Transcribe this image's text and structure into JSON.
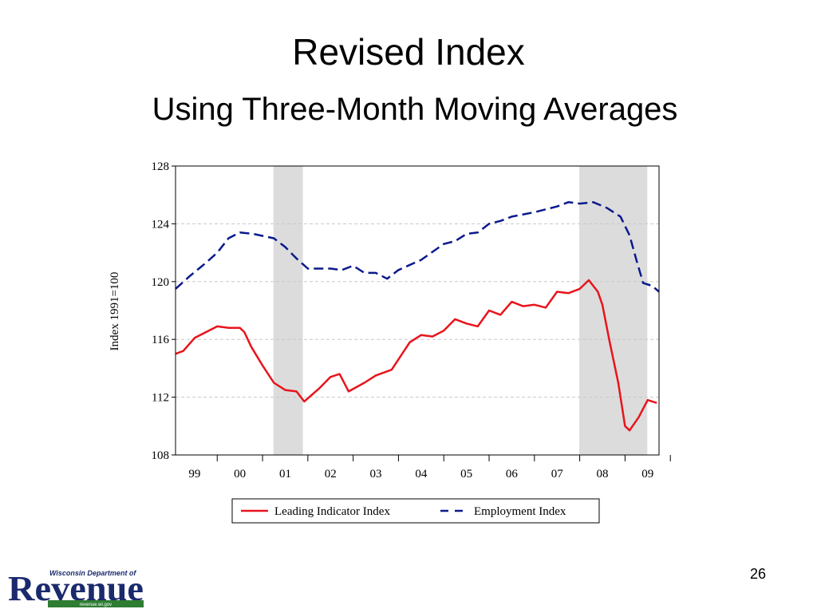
{
  "slide": {
    "page_number": "26",
    "logo": {
      "top": "Wisconsin Department of",
      "name": "Revenue",
      "url": "revenue.wi.gov"
    }
  },
  "chart_data": {
    "type": "line",
    "title": "Revised Index",
    "subtitle": "Using Three-Month Moving Averages",
    "y_label": "Index 1991=100",
    "xlim": [
      1999.08,
      2009.75
    ],
    "xticks": [
      {
        "value": 1999.5,
        "label": "99"
      },
      {
        "value": 2000.5,
        "label": "00"
      },
      {
        "value": 2001.5,
        "label": "01"
      },
      {
        "value": 2002.5,
        "label": "02"
      },
      {
        "value": 2003.5,
        "label": "03"
      },
      {
        "value": 2004.5,
        "label": "04"
      },
      {
        "value": 2005.5,
        "label": "05"
      },
      {
        "value": 2006.5,
        "label": "06"
      },
      {
        "value": 2007.5,
        "label": "07"
      },
      {
        "value": 2008.5,
        "label": "08"
      },
      {
        "value": 2009.5,
        "label": "09"
      }
    ],
    "ylim": [
      108,
      128
    ],
    "yticks": [
      108,
      112,
      116,
      120,
      124,
      128
    ],
    "grid": true,
    "shaded_regions": [
      [
        2001.24,
        2001.89
      ],
      [
        2007.99,
        2009.49
      ]
    ],
    "shade_color": "#dcdcdc",
    "legend": "bottom",
    "series": [
      {
        "name": "Leading Indicator Index",
        "color": "#e8141c",
        "line_style": "solid",
        "x": [
          1999.08,
          1999.25,
          1999.5,
          1999.75,
          2000.0,
          2000.25,
          2000.5,
          2000.6,
          2000.75,
          2001.0,
          2001.25,
          2001.5,
          2001.75,
          2001.92,
          2002.25,
          2002.5,
          2002.7,
          2002.9,
          2003.25,
          2003.5,
          2003.85,
          2004.25,
          2004.5,
          2004.75,
          2005.0,
          2005.25,
          2005.5,
          2005.75,
          2006.0,
          2006.25,
          2006.5,
          2006.75,
          2007.0,
          2007.25,
          2007.5,
          2007.75,
          2008.0,
          2008.2,
          2008.4,
          2008.5,
          2008.65,
          2008.85,
          2009.0,
          2009.1,
          2009.3,
          2009.5,
          2009.7
        ],
        "values": [
          115.0,
          115.2,
          116.1,
          116.5,
          116.9,
          116.8,
          116.8,
          116.5,
          115.5,
          114.2,
          113.0,
          112.5,
          112.4,
          111.7,
          112.6,
          113.4,
          113.6,
          112.4,
          113.0,
          113.5,
          113.9,
          115.8,
          116.3,
          116.2,
          116.6,
          117.4,
          117.1,
          116.9,
          118.0,
          117.7,
          118.6,
          118.3,
          118.4,
          118.2,
          119.3,
          119.2,
          119.5,
          120.1,
          119.3,
          118.4,
          116.0,
          113.0,
          110.0,
          109.7,
          110.6,
          111.8,
          111.6
        ]
      },
      {
        "name": "Employment Index",
        "color": "#0a1a8c",
        "line_style": "dashed",
        "x": [
          1999.08,
          1999.4,
          1999.75,
          2000.0,
          2000.25,
          2000.5,
          2000.8,
          2001.25,
          2001.5,
          2001.75,
          2002.0,
          2002.5,
          2002.75,
          2003.0,
          2003.25,
          2003.5,
          2003.75,
          2004.0,
          2004.5,
          2005.0,
          2005.25,
          2005.5,
          2005.75,
          2006.0,
          2006.25,
          2006.5,
          2007.0,
          2007.5,
          2007.75,
          2008.0,
          2008.3,
          2008.6,
          2008.9,
          2009.1,
          2009.25,
          2009.4,
          2009.6,
          2009.75
        ],
        "values": [
          119.5,
          120.4,
          121.3,
          122.0,
          123.0,
          123.4,
          123.3,
          123.0,
          122.4,
          121.6,
          120.9,
          120.9,
          120.8,
          121.1,
          120.6,
          120.6,
          120.2,
          120.8,
          121.5,
          122.6,
          122.8,
          123.3,
          123.4,
          124.0,
          124.2,
          124.5,
          124.8,
          125.2,
          125.5,
          125.4,
          125.5,
          125.1,
          124.5,
          123.2,
          121.5,
          119.9,
          119.7,
          119.3
        ]
      }
    ]
  }
}
